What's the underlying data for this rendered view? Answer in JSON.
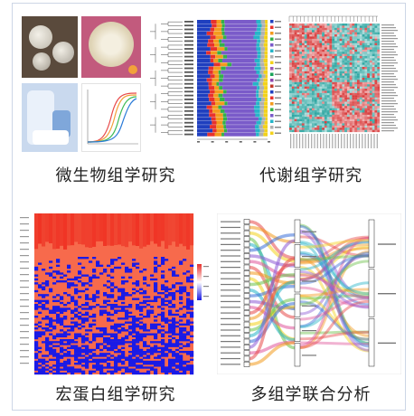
{
  "captions": {
    "microbiome": "微生物组学研究",
    "metabolome": "代谢组学研究",
    "proteome": "宏蛋白组学研究",
    "multiomics": "多组学联合分析"
  },
  "colors": {
    "heat_red": "#d83b3b",
    "heat_teal": "#2fa7a3",
    "proteome_blue": "#1a1ae6",
    "proteome_red": "#f2583c"
  }
}
